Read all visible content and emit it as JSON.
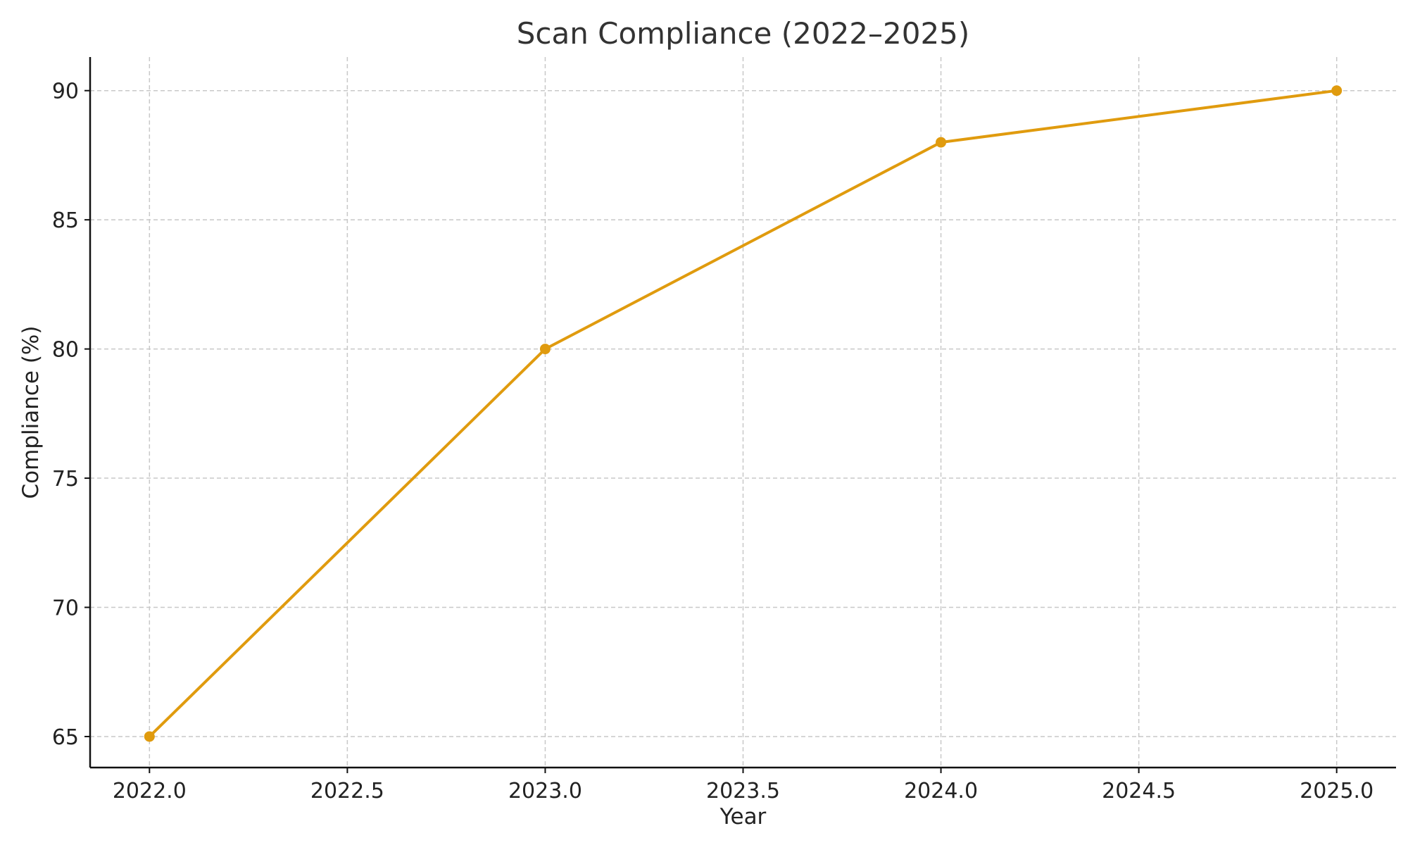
{
  "chart_data": {
    "type": "line",
    "title": "Scan Compliance (2022–2025)",
    "xlabel": "Year",
    "ylabel": "Compliance (%)",
    "xlim": [
      2021.85,
      2025.15
    ],
    "ylim": [
      63.8,
      91.3
    ],
    "xticks": [
      2022.0,
      2022.5,
      2023.0,
      2023.5,
      2024.0,
      2024.5,
      2025.0
    ],
    "xtick_labels": [
      "2022.0",
      "2022.5",
      "2023.0",
      "2023.5",
      "2024.0",
      "2024.5",
      "2025.0"
    ],
    "yticks": [
      65,
      70,
      75,
      80,
      85,
      90
    ],
    "ytick_labels": [
      "65",
      "70",
      "75",
      "80",
      "85",
      "90"
    ],
    "grid": true,
    "series": [
      {
        "x": [
          2022,
          2023,
          2024,
          2025
        ],
        "values": [
          65,
          80,
          88,
          90
        ],
        "color": "#E09B0E",
        "marker": "circle"
      }
    ]
  }
}
